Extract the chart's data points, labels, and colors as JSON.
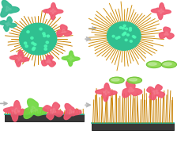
{
  "bg_top_left": "#F870A8",
  "bg_top_right": "#B8DCF0",
  "bg_bottom_left": "#F0A8C0",
  "bg_bottom_right": "#B8DCF0",
  "core_color": "#30C090",
  "core_spots": "#50FFB8",
  "spike_color_left": "#C88000",
  "spike_color_right": "#D09010",
  "protein_pink": "#F05870",
  "protein_cyan": "#30B890",
  "protein_green": "#70D840",
  "disk_green": "#88D848",
  "disk_border": "#60B030",
  "surface_base": "#383838",
  "surface_brush": "#C88000",
  "surface_teal": "#18B898",
  "arrow_color": "#B8B8B8",
  "figsize": [
    2.24,
    1.89
  ],
  "dpi": 100
}
